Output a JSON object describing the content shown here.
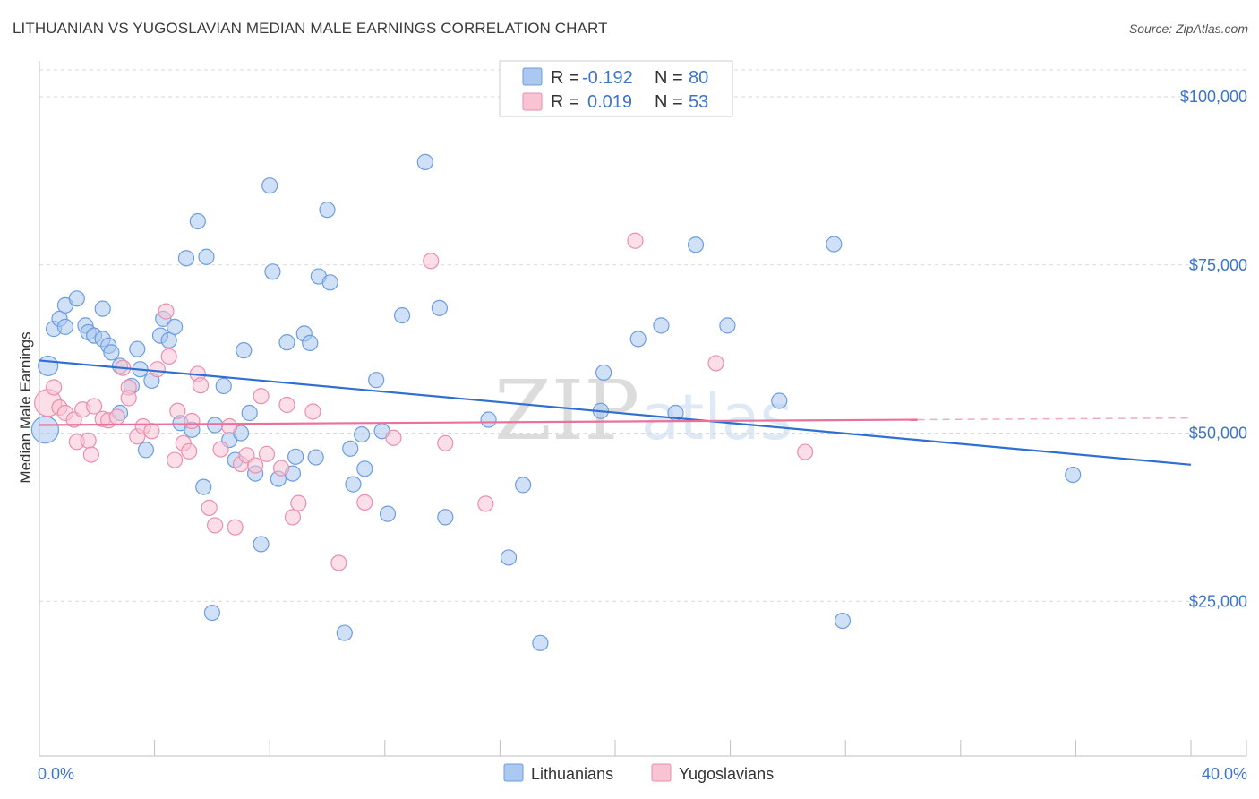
{
  "header": {
    "title": "LITHUANIAN VS YUGOSLAVIAN MEDIAN MALE EARNINGS CORRELATION CHART",
    "source": "Source: ZipAtlas.com"
  },
  "watermark": {
    "zip": "ZIP",
    "atlas": "atlas"
  },
  "legend": {
    "rows": [
      {
        "r_label": "R =",
        "r_value": "-0.192",
        "n_label": "N =",
        "n_value": "80",
        "color": "#aac8f0",
        "stroke": "#6d9de0"
      },
      {
        "r_label": "R =",
        "r_value": "0.019",
        "n_label": "N =",
        "n_value": "53",
        "color": "#f8c3d3",
        "stroke": "#ea8fac"
      }
    ]
  },
  "bottom_legend": [
    {
      "label": "Lithuanians",
      "color": "#aac8f0",
      "stroke": "#6d9de0"
    },
    {
      "label": "Yugoslavians",
      "color": "#f8c3d3",
      "stroke": "#ea8fac"
    }
  ],
  "chart_data": {
    "type": "scatter",
    "xlabel": "",
    "ylabel": "Median Male Earnings",
    "xlim": [
      0,
      40
    ],
    "ylim": [
      2000,
      104000
    ],
    "x_tick_labels": [
      {
        "value": 0,
        "label": "0.0%"
      },
      {
        "value": 40,
        "label": "40.0%"
      }
    ],
    "y_ticks": [
      {
        "value": 25000,
        "label": "$25,000"
      },
      {
        "value": 50000,
        "label": "$50,000"
      },
      {
        "value": 75000,
        "label": "$75,000"
      },
      {
        "value": 100000,
        "label": "$100,000"
      }
    ],
    "grid": true,
    "legend_position": "top-center",
    "series": [
      {
        "name": "Lithuanians",
        "color": "#aac8f0",
        "stroke": "#6d9de0",
        "trend": {
          "x": [
            0,
            40
          ],
          "y": [
            60800,
            45300
          ],
          "color": "#2f6fd1"
        },
        "points": [
          [
            0.2,
            50500
          ],
          [
            0.3,
            60000
          ],
          [
            0.5,
            65500
          ],
          [
            0.7,
            67000
          ],
          [
            0.9,
            65800
          ],
          [
            0.9,
            69000
          ],
          [
            1.3,
            70000
          ],
          [
            1.6,
            66000
          ],
          [
            1.7,
            65000
          ],
          [
            1.9,
            64500
          ],
          [
            2.2,
            64000
          ],
          [
            2.2,
            68500
          ],
          [
            2.4,
            63000
          ],
          [
            2.5,
            62000
          ],
          [
            2.8,
            60000
          ],
          [
            2.8,
            53000
          ],
          [
            3.2,
            57000
          ],
          [
            3.4,
            62500
          ],
          [
            3.5,
            59500
          ],
          [
            3.7,
            47500
          ],
          [
            3.9,
            57800
          ],
          [
            4.2,
            64500
          ],
          [
            4.3,
            67000
          ],
          [
            4.5,
            63800
          ],
          [
            4.7,
            65800
          ],
          [
            4.9,
            51500
          ],
          [
            5.1,
            76000
          ],
          [
            5.3,
            50500
          ],
          [
            5.5,
            81500
          ],
          [
            5.7,
            42000
          ],
          [
            5.8,
            76200
          ],
          [
            6.0,
            23300
          ],
          [
            6.1,
            51200
          ],
          [
            6.4,
            57000
          ],
          [
            6.6,
            49000
          ],
          [
            6.8,
            46000
          ],
          [
            7.0,
            50000
          ],
          [
            7.1,
            62300
          ],
          [
            7.3,
            53000
          ],
          [
            7.5,
            44000
          ],
          [
            7.7,
            33500
          ],
          [
            8.0,
            86800
          ],
          [
            8.1,
            74000
          ],
          [
            8.3,
            43200
          ],
          [
            8.6,
            63500
          ],
          [
            8.8,
            44000
          ],
          [
            8.9,
            46500
          ],
          [
            9.2,
            64800
          ],
          [
            9.4,
            63400
          ],
          [
            9.6,
            46400
          ],
          [
            9.7,
            73300
          ],
          [
            10.0,
            83200
          ],
          [
            10.1,
            72400
          ],
          [
            10.6,
            20300
          ],
          [
            10.8,
            47700
          ],
          [
            10.9,
            42400
          ],
          [
            11.2,
            49800
          ],
          [
            11.3,
            44700
          ],
          [
            11.7,
            57900
          ],
          [
            11.9,
            50300
          ],
          [
            12.1,
            38000
          ],
          [
            12.6,
            67500
          ],
          [
            13.4,
            90300
          ],
          [
            13.9,
            68600
          ],
          [
            14.1,
            37500
          ],
          [
            15.6,
            52000
          ],
          [
            16.3,
            31500
          ],
          [
            16.8,
            42300
          ],
          [
            17.4,
            18800
          ],
          [
            19.5,
            53300
          ],
          [
            19.6,
            59000
          ],
          [
            20.8,
            64000
          ],
          [
            21.6,
            66000
          ],
          [
            22.1,
            53000
          ],
          [
            22.8,
            78000
          ],
          [
            23.9,
            66000
          ],
          [
            25.7,
            54800
          ],
          [
            27.6,
            78100
          ],
          [
            27.9,
            22100
          ],
          [
            35.9,
            43800
          ]
        ]
      },
      {
        "name": "Yugoslavians",
        "color": "#f8c3d3",
        "stroke": "#ea8fac",
        "trend": {
          "x": [
            0,
            30.5
          ],
          "y": [
            51200,
            52000
          ],
          "color": "#e8729a",
          "dashed_to": 40
        },
        "points": [
          [
            0.3,
            54500
          ],
          [
            0.5,
            56800
          ],
          [
            0.7,
            53800
          ],
          [
            0.9,
            53000
          ],
          [
            1.2,
            52000
          ],
          [
            1.3,
            48700
          ],
          [
            1.5,
            53500
          ],
          [
            1.7,
            48900
          ],
          [
            1.8,
            46800
          ],
          [
            1.9,
            54000
          ],
          [
            2.2,
            52100
          ],
          [
            2.4,
            51900
          ],
          [
            2.7,
            52400
          ],
          [
            2.9,
            59700
          ],
          [
            3.1,
            56800
          ],
          [
            3.1,
            55200
          ],
          [
            3.4,
            49500
          ],
          [
            3.6,
            51000
          ],
          [
            3.9,
            50300
          ],
          [
            4.1,
            59500
          ],
          [
            4.4,
            68100
          ],
          [
            4.5,
            61400
          ],
          [
            4.7,
            46000
          ],
          [
            4.8,
            53300
          ],
          [
            5.0,
            48500
          ],
          [
            5.2,
            47300
          ],
          [
            5.3,
            51800
          ],
          [
            5.5,
            58800
          ],
          [
            5.6,
            57100
          ],
          [
            5.9,
            38900
          ],
          [
            6.1,
            36300
          ],
          [
            6.3,
            47600
          ],
          [
            6.6,
            51000
          ],
          [
            6.8,
            36000
          ],
          [
            7.0,
            45400
          ],
          [
            7.2,
            46700
          ],
          [
            7.5,
            45200
          ],
          [
            7.7,
            55500
          ],
          [
            7.9,
            46900
          ],
          [
            8.4,
            44800
          ],
          [
            8.6,
            54200
          ],
          [
            8.8,
            37500
          ],
          [
            9.0,
            39600
          ],
          [
            9.5,
            53200
          ],
          [
            10.4,
            30700
          ],
          [
            11.3,
            39700
          ],
          [
            12.3,
            49300
          ],
          [
            13.6,
            75600
          ],
          [
            14.1,
            48500
          ],
          [
            15.5,
            39500
          ],
          [
            20.7,
            78600
          ],
          [
            23.5,
            60400
          ],
          [
            26.6,
            47200
          ]
        ]
      }
    ]
  }
}
